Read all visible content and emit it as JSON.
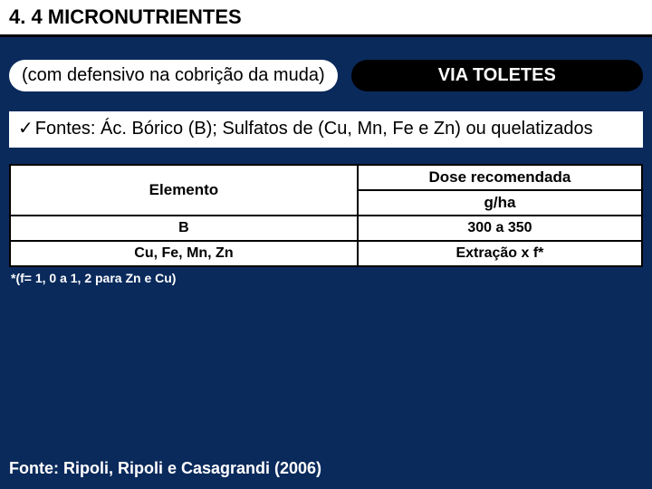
{
  "title": "4. 4 MICRONUTRIENTES",
  "sub_label": "(com defensivo na cobrição da muda)",
  "via_badge": "VIA TOLETES",
  "fontes": {
    "checkmark": "✓",
    "text_prefix": "Fontes:",
    "text_rest": " Ác. Bórico (B); Sulfatos de (Cu, Mn, Fe e Zn) ou quelatizados"
  },
  "table": {
    "header_elem": "Elemento",
    "header_dose": "Dose recomendada",
    "header_unit": "g/ha",
    "rows": [
      {
        "elem": "B",
        "dose": "300 a 350"
      },
      {
        "elem": "Cu, Fe, Mn, Zn",
        "dose": "Extração x f*"
      }
    ]
  },
  "footnote": "*(f= 1, 0 a 1, 2 para Zn e Cu)",
  "source": "Fonte: Ripoli, Ripoli e Casagrandi (2006)"
}
